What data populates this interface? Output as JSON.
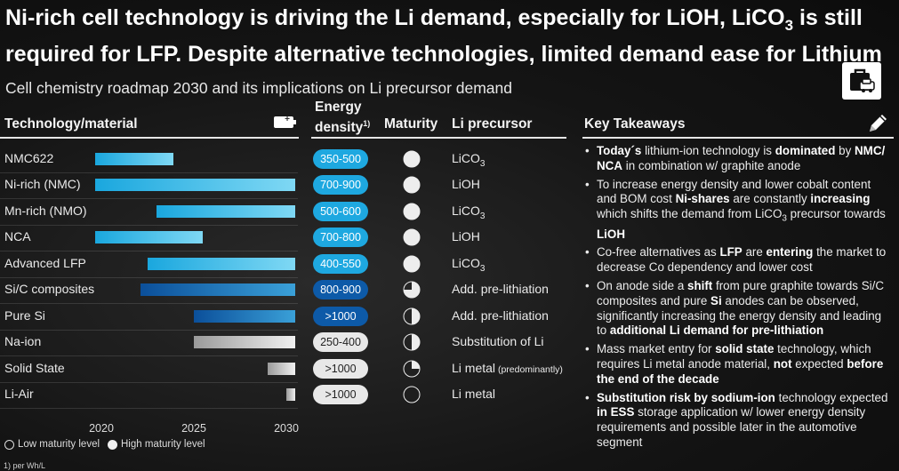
{
  "title": "Ni-rich cell technology is driving the Li demand, especially for LiOH, LiCO₃ is still required for LFP. Despite alternative technologies, limited demand ease for Lithium",
  "subtitle": "Cell chemistry roadmap 2030 and its implications on Li precursor demand",
  "headers": {
    "technology": "Technology/material",
    "energy_density": "Energy density",
    "energy_density_sup": "1)",
    "maturity": "Maturity",
    "precursor": "Li precursor",
    "takeaways": "Key Takeaways"
  },
  "icons": {
    "logo": "bag-car-logo-icon",
    "battery": "battery-icon",
    "pencil": "pencil-icon"
  },
  "chart_data": {
    "type": "bar",
    "subtype": "floating-timeline",
    "x_axis": {
      "range": [
        2018,
        2031
      ],
      "ticks": [
        "2020",
        "2025",
        "2030"
      ]
    },
    "rows": [
      {
        "name": "NMC622",
        "start": 2019.5,
        "end": 2023.9,
        "style": "cyan",
        "energy_density": "350-500",
        "pill": "cyan",
        "maturity": 1.0,
        "precursor": "LiCO",
        "precursor_sub": "3",
        "precursor_note": ""
      },
      {
        "name": "Ni-rich (NMC)",
        "start": 2019.5,
        "end": 2030.5,
        "style": "cyan",
        "energy_density": "700-900",
        "pill": "cyan",
        "maturity": 1.0,
        "precursor": "LiOH",
        "precursor_sub": "",
        "precursor_note": ""
      },
      {
        "name": "Mn-rich (NMO)",
        "start": 2023.0,
        "end": 2030.5,
        "style": "cyan",
        "energy_density": "500-600",
        "pill": "cyan",
        "maturity": 1.0,
        "precursor": "LiCO",
        "precursor_sub": "3",
        "precursor_note": ""
      },
      {
        "name": "NCA",
        "start": 2019.5,
        "end": 2025.5,
        "style": "cyan",
        "energy_density": "700-800",
        "pill": "cyan",
        "maturity": 1.0,
        "precursor": "LiOH",
        "precursor_sub": "",
        "precursor_note": ""
      },
      {
        "name": "Advanced LFP",
        "start": 2022.5,
        "end": 2030.5,
        "style": "cyan",
        "energy_density": "400-550",
        "pill": "cyan",
        "maturity": 1.0,
        "precursor": "LiCO",
        "precursor_sub": "3",
        "precursor_note": ""
      },
      {
        "name": "Si/C composites",
        "start": 2022.1,
        "end": 2030.5,
        "style": "blue",
        "energy_density": "800-900",
        "pill": "blue",
        "maturity": 0.75,
        "precursor": "Add. pre-lithiation",
        "precursor_sub": "",
        "precursor_note": ""
      },
      {
        "name": "Pure Si",
        "start": 2025.0,
        "end": 2030.5,
        "style": "blue",
        "energy_density": ">1000",
        "pill": "blue",
        "maturity": 0.5,
        "precursor": "Add. pre-lithiation",
        "precursor_sub": "",
        "precursor_note": ""
      },
      {
        "name": "Na-ion",
        "start": 2025.0,
        "end": 2030.5,
        "style": "grey",
        "energy_density": "250-400",
        "pill": "grey",
        "maturity": 0.5,
        "precursor": "Substitution of Li",
        "precursor_sub": "",
        "precursor_note": ""
      },
      {
        "name": "Solid State",
        "start": 2029.0,
        "end": 2030.5,
        "style": "grey",
        "energy_density": ">1000",
        "pill": "grey",
        "maturity": 0.25,
        "precursor": "Li metal",
        "precursor_sub": "",
        "precursor_note": "(predominantly)"
      },
      {
        "name": "Li-Air",
        "start": 2030.0,
        "end": 2030.5,
        "style": "grey",
        "energy_density": ">1000",
        "pill": "grey",
        "maturity": 0.0,
        "precursor": "Li metal",
        "precursor_sub": "",
        "precursor_note": ""
      }
    ]
  },
  "colors": {
    "cyan_light": "#7fd8f4",
    "cyan_dark": "#1aa7de",
    "blue_light": "#3aa0d8",
    "blue_dark": "#0b4f9a",
    "grey_light": "#f0f0f0",
    "grey_dark": "#9a9a9a",
    "pill_cyan": "#1ea8e0",
    "pill_blue": "#0d5aa8",
    "pill_grey": "#e8e8e8"
  },
  "legend": {
    "low": "Low maturity level",
    "high": "High maturity level"
  },
  "footnote": "1) per Wh/L",
  "takeaways": [
    [
      {
        "t": "Today´s",
        "b": true
      },
      {
        "t": " lithium-ion technology is "
      },
      {
        "t": "dominated",
        "b": true
      },
      {
        "t": " by "
      },
      {
        "t": "NMC/ NCA",
        "b": true
      },
      {
        "t": " in combination w/ graphite anode"
      }
    ],
    [
      {
        "t": "To increase energy density and lower cobalt content and BOM cost "
      },
      {
        "t": "Ni-shares",
        "b": true
      },
      {
        "t": " are constantly "
      },
      {
        "t": "increasing",
        "b": true
      },
      {
        "t": " which shifts the demand from LiCO"
      },
      {
        "t": "3",
        "sub": true
      },
      {
        "t": " precursor towards "
      },
      {
        "t": "LiOH",
        "b": true
      }
    ],
    [
      {
        "t": "Co-free alternatives as "
      },
      {
        "t": "LFP",
        "b": true
      },
      {
        "t": " are "
      },
      {
        "t": "entering",
        "b": true
      },
      {
        "t": " the market to decrease Co dependency and lower cost"
      }
    ],
    [
      {
        "t": "On anode side a "
      },
      {
        "t": "shift",
        "b": true
      },
      {
        "t": " from pure graphite towards Si/C composites and pure "
      },
      {
        "t": "Si",
        "b": true
      },
      {
        "t": " anodes can be observed, significantly increasing the energy density and leading to "
      },
      {
        "t": "additional Li demand for pre-lithiation",
        "b": true
      }
    ],
    [
      {
        "t": "Mass market entry for "
      },
      {
        "t": "solid state",
        "b": true
      },
      {
        "t": " technology, which requires Li metal anode material, "
      },
      {
        "t": "not",
        "b": true
      },
      {
        "t": " expected "
      },
      {
        "t": "before the end of the decade",
        "b": true
      }
    ],
    [
      {
        "t": "Substitution risk by sodium-ion",
        "b": true
      },
      {
        "t": " technology expected "
      },
      {
        "t": "in ESS",
        "b": true
      },
      {
        "t": " storage application w/ lower energy density requirements and possible later in the automotive segment"
      }
    ]
  ]
}
